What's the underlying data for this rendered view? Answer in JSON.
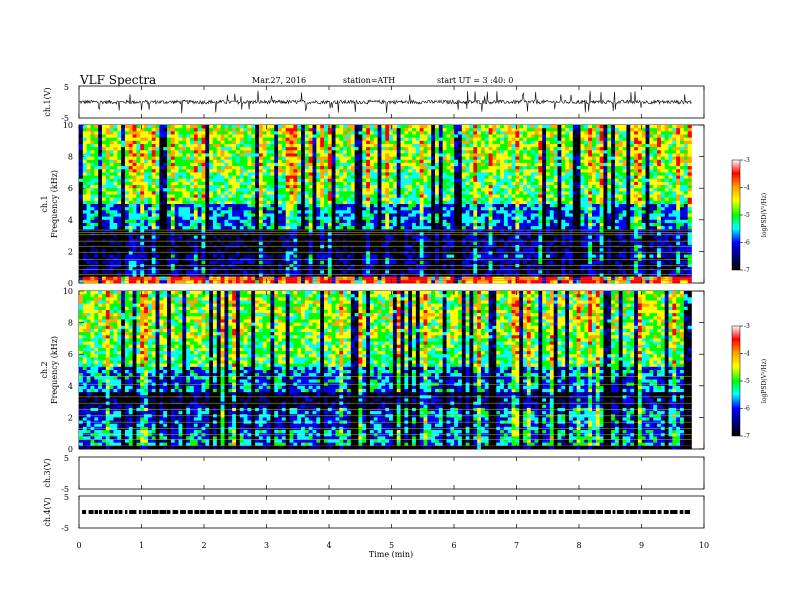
{
  "header": {
    "title": "VLF  Spectra",
    "date": "Mar.27, 2016",
    "station": "station=ATH",
    "start": "start  UT =  3 :40: 0"
  },
  "chart_data": [
    {
      "type": "line",
      "name": "ch1-waveform",
      "ylabel": "ch.1(V)",
      "ylim": [
        -5,
        5
      ],
      "yticks": [
        "5",
        "-5"
      ],
      "xlim": [
        0,
        9.8
      ],
      "baseline": 0,
      "noise_amplitude": 0.6,
      "spike_amplitude": 3.5
    },
    {
      "type": "heatmap",
      "name": "ch1-spectrogram",
      "ylabel": [
        "ch.1",
        "Frequency  (kHz)"
      ],
      "ylim": [
        0,
        10
      ],
      "yticks": [
        "0",
        "2",
        "4",
        "6",
        "8",
        "10"
      ],
      "xlim": [
        0,
        9.8
      ],
      "colorbar": {
        "label": "logPSD(V²/Hz)",
        "range": [
          -7,
          -3
        ],
        "ticks": [
          "-3",
          "-4",
          "-5",
          "-6",
          "-7"
        ],
        "colors": [
          "#ffffff",
          "#ff0000",
          "#ffa500",
          "#ffff00",
          "#00ff00",
          "#00ffff",
          "#0000ff",
          "#000080",
          "#000000"
        ]
      },
      "change_time": 5.2,
      "bands": [
        {
          "fmin": 0.0,
          "fmax": 0.4,
          "level": 0.85
        },
        {
          "fmin": 0.4,
          "fmax": 1.2,
          "level": 0.15
        },
        {
          "fmin": 1.2,
          "fmax": 1.9,
          "level": 0.2
        },
        {
          "fmin": 1.9,
          "fmax": 3.4,
          "level": 0.08
        },
        {
          "fmin": 3.4,
          "fmax": 5.0,
          "level": 0.35
        },
        {
          "fmin": 5.0,
          "fmax": 7.0,
          "level": 0.55
        },
        {
          "fmin": 7.0,
          "fmax": 10.0,
          "level": 0.62
        }
      ],
      "lines_khz": [
        0.15,
        0.3,
        0.55,
        0.85,
        1.1,
        1.5,
        1.95,
        2.3,
        2.65,
        3.05,
        3.2,
        3.35
      ]
    },
    {
      "type": "heatmap",
      "name": "ch2-spectrogram",
      "ylabel": [
        "ch.2",
        "Frequency  (kHz)"
      ],
      "ylim": [
        0,
        10
      ],
      "yticks": [
        "0",
        "2",
        "4",
        "6",
        "8",
        "10"
      ],
      "xlim": [
        0,
        9.8
      ],
      "colorbar": {
        "label": "logPSD(V²/Hz)",
        "range": [
          -7,
          -3
        ],
        "ticks": [
          "-3",
          "-4",
          "-5",
          "-6",
          "-7"
        ],
        "colors": [
          "#ffffff",
          "#ff0000",
          "#ffa500",
          "#ffff00",
          "#00ff00",
          "#00ffff",
          "#0000ff",
          "#000080",
          "#000000"
        ]
      },
      "change_time": 5.2,
      "bands": [
        {
          "fmin": 0.0,
          "fmax": 0.3,
          "level": 0.05
        },
        {
          "fmin": 0.3,
          "fmax": 1.2,
          "level": 0.4
        },
        {
          "fmin": 1.2,
          "fmax": 2.6,
          "level": 0.3
        },
        {
          "fmin": 2.6,
          "fmax": 3.6,
          "level": 0.12
        },
        {
          "fmin": 3.6,
          "fmax": 5.2,
          "level": 0.38
        },
        {
          "fmin": 5.2,
          "fmax": 7.0,
          "level": 0.55
        },
        {
          "fmin": 7.0,
          "fmax": 10.0,
          "level": 0.62
        }
      ],
      "lines_khz": [
        0.2,
        0.6,
        0.9,
        1.3,
        1.7,
        2.1,
        2.5,
        2.9,
        3.3,
        4.1,
        4.6
      ]
    },
    {
      "type": "line",
      "name": "ch3-waveform",
      "ylabel": "ch.3(V)",
      "ylim": [
        -5,
        5
      ],
      "yticks": [
        "5",
        "-5"
      ],
      "xlim": [
        0,
        9.8
      ],
      "values": []
    },
    {
      "type": "line",
      "name": "ch4-waveform",
      "ylabel": "ch.4(V)",
      "ylim": [
        -5,
        5
      ],
      "yticks": [
        "5",
        "-5"
      ],
      "xlim": [
        0,
        9.8
      ],
      "baseline": 0,
      "pulse_level": 0
    }
  ],
  "xaxis": {
    "label": "Time  (min)",
    "range": [
      0,
      10
    ],
    "ticks": [
      "0",
      "1",
      "2",
      "3",
      "4",
      "5",
      "6",
      "7",
      "8",
      "9",
      "10"
    ]
  }
}
